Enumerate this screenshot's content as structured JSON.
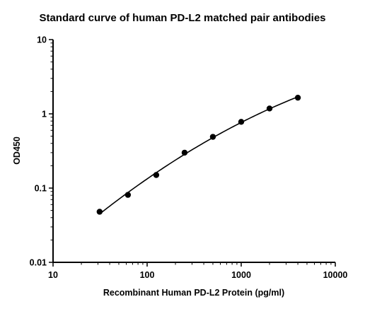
{
  "chart_data": {
    "type": "scatter",
    "title": "Standard curve of human PD-L2 matched pair antibodies",
    "xlabel": "Recombinant Human PD-L2 Protein (pg/ml)",
    "ylabel": "OD450",
    "x_scale": "log",
    "y_scale": "log",
    "xlim": [
      10,
      10000
    ],
    "ylim": [
      0.01,
      10
    ],
    "x_ticks": [
      10,
      100,
      1000,
      10000
    ],
    "x_tick_labels": [
      "10",
      "100",
      "1000",
      "10000"
    ],
    "y_ticks": [
      0.01,
      0.1,
      1,
      10
    ],
    "y_tick_labels": [
      "0.01",
      "0.1",
      "1",
      "10"
    ],
    "grid": false,
    "legend": "none",
    "series": [
      {
        "x": [
          31.25,
          62.5,
          125,
          250,
          500,
          1000,
          2000,
          4000
        ],
        "y": [
          0.048,
          0.081,
          0.15,
          0.3,
          0.49,
          0.78,
          1.18,
          1.65
        ],
        "fit_curve": true,
        "color": "#000000"
      }
    ]
  }
}
